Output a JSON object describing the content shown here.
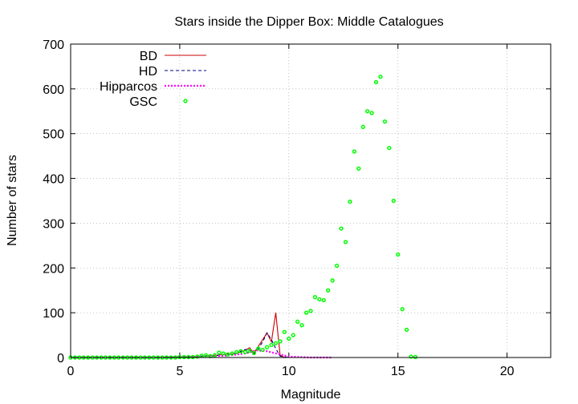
{
  "chart_data": {
    "type": "line",
    "title": "Stars inside the Dipper Box: Middle Catalogues",
    "xlabel": "Magnitude",
    "ylabel": "Number of stars",
    "xlim": [
      0,
      22
    ],
    "ylim": [
      0,
      700
    ],
    "xticks": [
      0,
      5,
      10,
      15,
      20
    ],
    "yticks": [
      0,
      100,
      200,
      300,
      400,
      500,
      600,
      700
    ],
    "grid": true,
    "legend_position": "top-left",
    "series": [
      {
        "name": "BD",
        "style": "line",
        "color": "#cc0000",
        "x": [
          0,
          0.2,
          0.4,
          0.6,
          0.8,
          1.0,
          1.2,
          1.4,
          1.6,
          1.8,
          2.0,
          2.2,
          2.4,
          2.6,
          2.8,
          3.0,
          3.2,
          3.4,
          3.6,
          3.8,
          4.0,
          4.2,
          4.4,
          4.6,
          4.8,
          5.0,
          5.2,
          5.4,
          5.6,
          5.8,
          6.0,
          6.2,
          6.4,
          6.6,
          6.8,
          7.0,
          7.2,
          7.4,
          7.6,
          7.8,
          8.0,
          8.2,
          8.4,
          8.6,
          8.8,
          9.0,
          9.2,
          9.4,
          9.6,
          9.8,
          10.0,
          10.2,
          10.4
        ],
        "y": [
          0,
          0,
          0,
          0,
          0,
          0,
          0,
          0,
          0,
          0,
          0,
          0,
          0,
          0,
          0,
          0,
          0,
          0,
          0,
          0,
          0,
          0,
          1,
          1,
          1,
          1,
          1,
          2,
          2,
          2,
          3,
          4,
          4,
          5,
          5,
          7,
          8,
          8,
          10,
          12,
          16,
          22,
          10,
          25,
          40,
          55,
          35,
          100,
          5,
          0,
          0,
          0,
          0
        ]
      },
      {
        "name": "HD",
        "style": "dashed",
        "color": "#000080",
        "x": [
          0,
          0.2,
          0.4,
          0.6,
          0.8,
          1.0,
          1.2,
          1.4,
          1.6,
          1.8,
          2.0,
          2.2,
          2.4,
          2.6,
          2.8,
          3.0,
          3.2,
          3.4,
          3.6,
          3.8,
          4.0,
          4.2,
          4.4,
          4.6,
          4.8,
          5.0,
          5.2,
          5.4,
          5.6,
          5.8,
          6.0,
          6.2,
          6.4,
          6.6,
          6.8,
          7.0,
          7.2,
          7.4,
          7.6,
          7.8,
          8.0,
          8.2,
          8.4,
          8.6,
          8.8,
          9.0,
          9.2,
          9.4,
          9.6,
          9.8,
          10.0,
          10.2,
          10.4
        ],
        "y": [
          0,
          0,
          0,
          0,
          0,
          0,
          0,
          0,
          0,
          0,
          0,
          0,
          0,
          0,
          0,
          0,
          0,
          0,
          0,
          0,
          0,
          0,
          1,
          1,
          1,
          1,
          1,
          2,
          2,
          2,
          3,
          4,
          4,
          4,
          5,
          6,
          7,
          8,
          10,
          14,
          18,
          16,
          8,
          20,
          35,
          55,
          40,
          20,
          3,
          1,
          0,
          0,
          0
        ]
      },
      {
        "name": "Hipparcos",
        "style": "dotted",
        "color": "#ff00ff",
        "x": [
          0,
          0.5,
          1.0,
          1.5,
          2.0,
          2.5,
          3.0,
          3.5,
          4.0,
          4.5,
          5.0,
          5.5,
          6.0,
          6.5,
          7.0,
          7.5,
          8.0,
          8.5,
          9.0,
          9.5,
          10.0,
          10.5,
          11.0,
          11.5,
          12.0
        ],
        "y": [
          0,
          0,
          0,
          0,
          0,
          0,
          0,
          0,
          0,
          0,
          1,
          1,
          2,
          3,
          4,
          6,
          9,
          16,
          14,
          8,
          2,
          1,
          0,
          0,
          0
        ]
      },
      {
        "name": "GSC",
        "style": "points",
        "color": "#00ff00",
        "x": [
          0,
          0.2,
          0.4,
          0.6,
          0.8,
          1.0,
          1.2,
          1.4,
          1.6,
          1.8,
          2.0,
          2.2,
          2.4,
          2.6,
          2.8,
          3.0,
          3.2,
          3.4,
          3.6,
          3.8,
          4.0,
          4.2,
          4.4,
          4.6,
          4.8,
          5.0,
          5.2,
          5.4,
          5.6,
          5.8,
          6.0,
          6.2,
          6.4,
          6.6,
          6.8,
          7.0,
          7.2,
          7.4,
          7.6,
          7.8,
          8.0,
          8.2,
          8.4,
          8.6,
          8.8,
          9.0,
          9.2,
          9.4,
          9.6,
          9.8,
          10.0,
          10.2,
          10.4,
          10.6,
          10.8,
          11.0,
          11.2,
          11.4,
          11.6,
          11.8,
          12.0,
          12.2,
          12.4,
          12.6,
          12.8,
          13.0,
          13.2,
          13.4,
          13.6,
          13.8,
          14.0,
          14.2,
          14.4,
          14.6,
          14.8,
          15.0,
          15.2,
          15.4,
          15.6,
          15.8
        ],
        "y": [
          0,
          0,
          0,
          0,
          0,
          0,
          0,
          0,
          0,
          0,
          0,
          0,
          0,
          0,
          0,
          0,
          0,
          0,
          0,
          0,
          0,
          0,
          0,
          0,
          0,
          1,
          1,
          1,
          1,
          2,
          4,
          5,
          3,
          5,
          11,
          9,
          7,
          9,
          12,
          14,
          12,
          15,
          10,
          20,
          17,
          23,
          28,
          32,
          36,
          57,
          42,
          50,
          80,
          72,
          100,
          104,
          135,
          130,
          128,
          150,
          172,
          205,
          288,
          258,
          348,
          460,
          422,
          515,
          550,
          546,
          615,
          627,
          527,
          468,
          350,
          230,
          108,
          62,
          2,
          1
        ]
      }
    ]
  }
}
